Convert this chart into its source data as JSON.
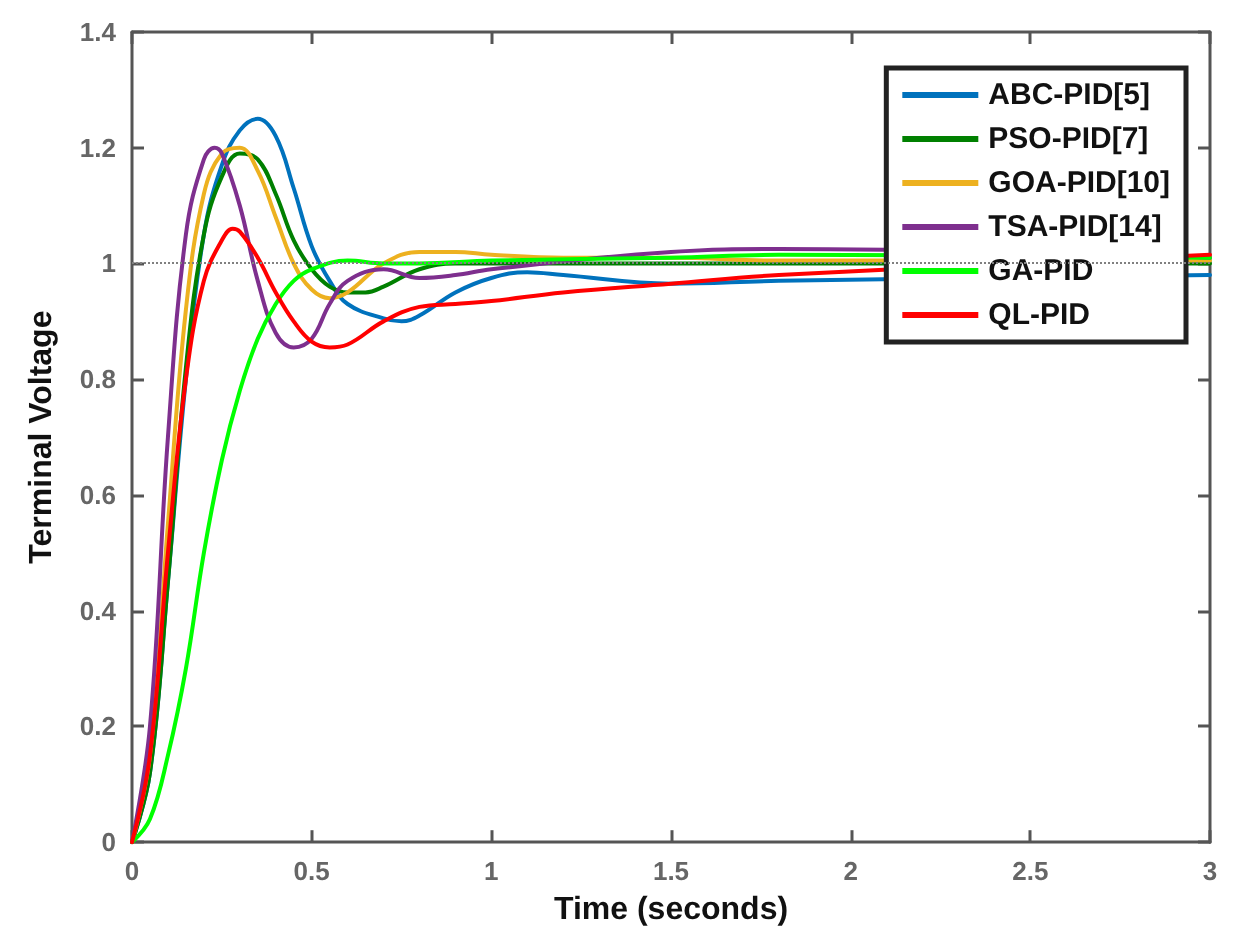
{
  "chart_data": {
    "type": "line",
    "xlabel": "Time (seconds)",
    "ylabel": "Terminal Voltage",
    "xlim": [
      0,
      3
    ],
    "xticks": [
      0,
      0.5,
      1,
      1.5,
      2,
      2.5,
      3
    ],
    "ylim": [
      0,
      1.4
    ],
    "yticks": [
      0,
      0.2,
      0.4,
      0.6,
      0.8,
      1,
      1.2,
      1.4
    ],
    "grid": false,
    "legend": "top right",
    "marker": "none",
    "line_style": "solid",
    "ref_lines": [
      {
        "axis": "y",
        "value": 1,
        "color": "#808080",
        "line_style": "dotted"
      }
    ],
    "series": [
      {
        "name": "ABC-PID[5]",
        "color": "#0072bd",
        "x": [
          0,
          0.05,
          0.1,
          0.15,
          0.2,
          0.25,
          0.3,
          0.35,
          0.4,
          0.45,
          0.5,
          0.55,
          0.6,
          0.7,
          0.75,
          0.8,
          0.9,
          1,
          1.1,
          1.2,
          1.5,
          1.8,
          3
        ],
        "values": [
          0,
          0.12,
          0.45,
          0.8,
          1.05,
          1.17,
          1.23,
          1.25,
          1.22,
          1.13,
          1.03,
          0.97,
          0.93,
          0.905,
          0.9,
          0.91,
          0.95,
          0.975,
          0.985,
          0.98,
          0.965,
          0.97,
          0.98
        ]
      },
      {
        "name": "PSO-PID[7]",
        "color": "#008000",
        "x": [
          0,
          0.05,
          0.1,
          0.15,
          0.2,
          0.25,
          0.3,
          0.35,
          0.4,
          0.45,
          0.5,
          0.55,
          0.6,
          0.65,
          0.7,
          0.8,
          0.9,
          1,
          1.5,
          1.8,
          3
        ],
        "values": [
          0,
          0.12,
          0.45,
          0.82,
          1.05,
          1.15,
          1.19,
          1.18,
          1.12,
          1.04,
          0.99,
          0.96,
          0.95,
          0.95,
          0.96,
          0.99,
          1,
          1,
          1,
          1,
          1
        ]
      },
      {
        "name": "GOA-PID[10]",
        "color": "#edb120",
        "x": [
          0,
          0.05,
          0.1,
          0.15,
          0.2,
          0.25,
          0.3,
          0.35,
          0.4,
          0.45,
          0.5,
          0.55,
          0.6,
          0.7,
          0.8,
          0.9,
          1,
          1.2,
          1.5,
          1.8,
          3
        ],
        "values": [
          0,
          0.15,
          0.55,
          0.92,
          1.12,
          1.19,
          1.2,
          1.16,
          1.08,
          1,
          0.955,
          0.94,
          0.95,
          1,
          1.02,
          1.02,
          1.015,
          1.01,
          1.01,
          1.005,
          1.005
        ]
      },
      {
        "name": "TSA-PID[14]",
        "color": "#7e2f8e",
        "x": [
          0,
          0.05,
          0.1,
          0.15,
          0.2,
          0.23,
          0.25,
          0.3,
          0.35,
          0.4,
          0.45,
          0.5,
          0.55,
          0.6,
          0.7,
          0.8,
          0.9,
          1,
          1.5,
          1.8,
          3
        ],
        "values": [
          0,
          0.2,
          0.7,
          1.05,
          1.18,
          1.2,
          1.19,
          1.1,
          0.97,
          0.88,
          0.855,
          0.87,
          0.93,
          0.97,
          0.99,
          0.975,
          0.98,
          0.99,
          1.02,
          1.025,
          1.01
        ]
      },
      {
        "name": "GA-PID",
        "color": "#00ff00",
        "x": [
          0,
          0.05,
          0.1,
          0.15,
          0.2,
          0.25,
          0.3,
          0.35,
          0.4,
          0.45,
          0.5,
          0.6,
          0.7,
          0.8,
          1,
          1.5,
          1.8,
          3
        ],
        "values": [
          0,
          0.04,
          0.15,
          0.3,
          0.5,
          0.66,
          0.78,
          0.87,
          0.93,
          0.97,
          0.99,
          1.005,
          1,
          1,
          1.005,
          1.01,
          1.015,
          1.01
        ]
      },
      {
        "name": "QL-PID",
        "color": "#ff0000",
        "x": [
          0,
          0.05,
          0.1,
          0.15,
          0.2,
          0.25,
          0.28,
          0.3,
          0.35,
          0.4,
          0.45,
          0.5,
          0.55,
          0.6,
          0.7,
          0.8,
          0.9,
          1,
          1.2,
          1.5,
          1.8,
          3
        ],
        "values": [
          0,
          0.15,
          0.5,
          0.8,
          0.97,
          1.04,
          1.06,
          1.055,
          1.01,
          0.95,
          0.9,
          0.865,
          0.855,
          0.86,
          0.9,
          0.925,
          0.93,
          0.935,
          0.95,
          0.965,
          0.98,
          1.015
        ]
      }
    ]
  }
}
